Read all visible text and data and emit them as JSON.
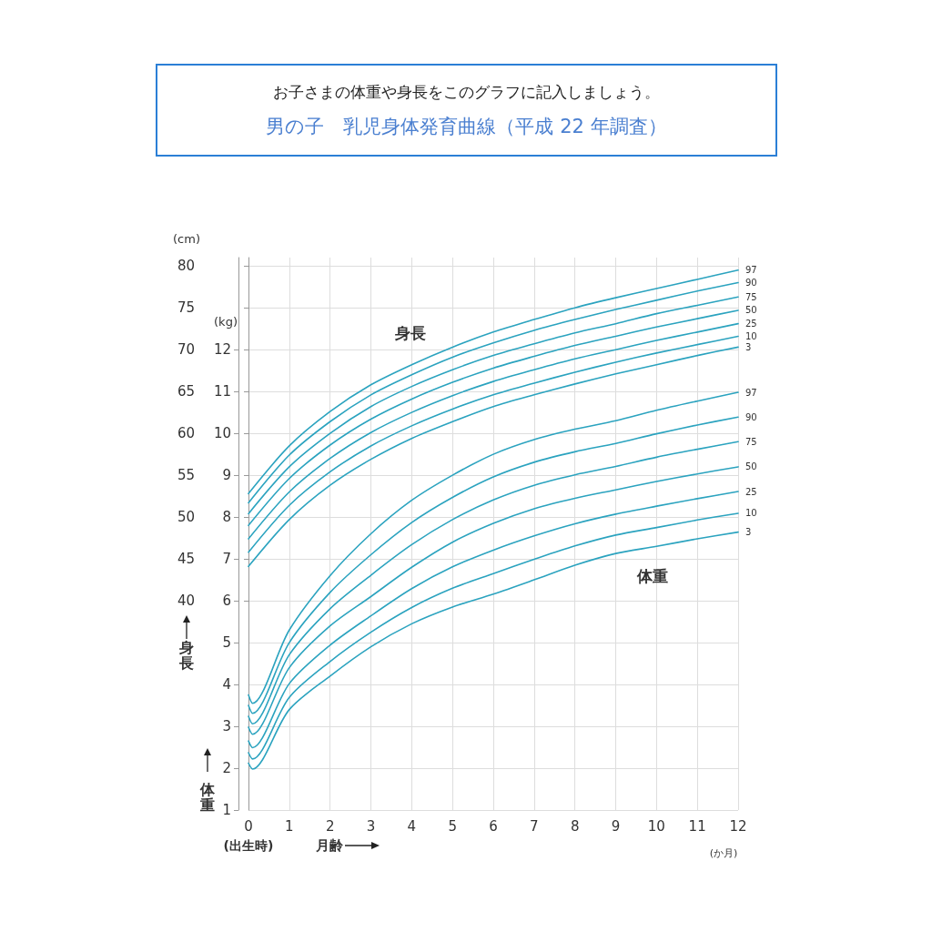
{
  "chart_data": {
    "type": "line",
    "title": "お子さまの体重や身長をこのグラフに記入しましょう。",
    "subtitle": "男の子　乳児身体発育曲線（平成 22 年調査）",
    "xlabel": "月齢",
    "ylabel": "(cm)",
    "y2label": "(kg)",
    "xlim": [
      0,
      12
    ],
    "xticks": [
      0,
      1,
      2,
      3,
      4,
      5,
      6,
      7,
      8,
      9,
      10,
      11,
      12
    ],
    "ylim": [
      15,
      81
    ],
    "yticks": [
      40,
      45,
      50,
      55,
      60,
      65,
      70,
      75,
      80
    ],
    "y2lim": [
      1,
      14.2
    ],
    "y2ticks": [
      1,
      2,
      3,
      4,
      5,
      6,
      7,
      8,
      9,
      10,
      11,
      12
    ],
    "grid": true,
    "legend": false,
    "marker": "none",
    "line_style": "solid",
    "annotations": [
      "身長",
      "体重",
      "(出生時)",
      "(か月)",
      "身長",
      "体重"
    ],
    "series": [
      {
        "name": "97",
        "color": "#2ba3bf",
        "x": [
          0,
          1,
          2,
          3,
          4,
          5,
          6,
          7,
          8,
          9,
          10,
          11,
          12
        ],
        "values": [
          52.8,
          58.5,
          62.6,
          65.8,
          68.2,
          70.3,
          72.1,
          73.6,
          75.0,
          76.2,
          77.3,
          78.4,
          79.5
        ]
      },
      {
        "name": "90",
        "color": "#2ba3bf",
        "x": [
          0,
          1,
          2,
          3,
          4,
          5,
          6,
          7,
          8,
          9,
          10,
          11,
          12
        ],
        "values": [
          51.7,
          57.4,
          61.4,
          64.6,
          67.0,
          69.1,
          70.8,
          72.3,
          73.6,
          74.8,
          75.9,
          77.0,
          78.0
        ]
      },
      {
        "name": "75",
        "color": "#2ba3bf",
        "x": [
          0,
          1,
          2,
          3,
          4,
          5,
          6,
          7,
          8,
          9,
          10,
          11,
          12
        ],
        "values": [
          50.4,
          56.0,
          60.0,
          63.2,
          65.6,
          67.6,
          69.3,
          70.7,
          72.0,
          73.1,
          74.3,
          75.3,
          76.3
        ]
      },
      {
        "name": "50",
        "color": "#2ba3bf",
        "x": [
          0,
          1,
          2,
          3,
          4,
          5,
          6,
          7,
          8,
          9,
          10,
          11,
          12
        ],
        "values": [
          49.0,
          54.6,
          58.6,
          61.7,
          64.1,
          66.1,
          67.8,
          69.2,
          70.5,
          71.6,
          72.7,
          73.7,
          74.7
        ]
      },
      {
        "name": "25",
        "color": "#2ba3bf",
        "x": [
          0,
          1,
          2,
          3,
          4,
          5,
          6,
          7,
          8,
          9,
          10,
          11,
          12
        ],
        "values": [
          47.4,
          53.0,
          57.0,
          60.1,
          62.5,
          64.5,
          66.2,
          67.6,
          68.9,
          70.0,
          71.1,
          72.1,
          73.1
        ]
      },
      {
        "name": "10",
        "color": "#2ba3bf",
        "x": [
          0,
          1,
          2,
          3,
          4,
          5,
          6,
          7,
          8,
          9,
          10,
          11,
          12
        ],
        "values": [
          45.8,
          51.4,
          55.4,
          58.5,
          60.9,
          62.9,
          64.6,
          66.0,
          67.3,
          68.5,
          69.6,
          70.6,
          71.6
        ]
      },
      {
        "name": "3",
        "color": "#2ba3bf",
        "x": [
          0,
          1,
          2,
          3,
          4,
          5,
          6,
          7,
          8,
          9,
          10,
          11,
          12
        ],
        "values": [
          44.1,
          49.7,
          53.8,
          56.9,
          59.4,
          61.4,
          63.2,
          64.6,
          65.9,
          67.1,
          68.2,
          69.3,
          70.3
        ]
      },
      {
        "name": "97",
        "color": "#2ba3bf",
        "axis": "y2",
        "x": [
          0,
          0.1,
          1,
          2,
          3,
          4,
          5,
          6,
          7,
          8,
          9,
          10,
          11,
          12
        ],
        "values": [
          3.75,
          3.55,
          5.3,
          6.6,
          7.6,
          8.4,
          9.0,
          9.5,
          9.85,
          10.1,
          10.3,
          10.55,
          10.77,
          10.98
        ]
      },
      {
        "name": "90",
        "color": "#2ba3bf",
        "axis": "y2",
        "x": [
          0,
          0.1,
          1,
          2,
          3,
          4,
          5,
          6,
          7,
          8,
          9,
          10,
          11,
          12
        ],
        "values": [
          3.5,
          3.31,
          5.0,
          6.2,
          7.1,
          7.87,
          8.47,
          8.96,
          9.31,
          9.56,
          9.76,
          9.99,
          10.2,
          10.39
        ]
      },
      {
        "name": "75",
        "color": "#2ba3bf",
        "axis": "y2",
        "x": [
          0,
          0.1,
          1,
          2,
          3,
          4,
          5,
          6,
          7,
          8,
          9,
          10,
          11,
          12
        ],
        "values": [
          3.24,
          3.06,
          4.71,
          5.81,
          6.61,
          7.34,
          7.94,
          8.41,
          8.76,
          9.01,
          9.21,
          9.43,
          9.62,
          9.8
        ]
      },
      {
        "name": "50",
        "color": "#2ba3bf",
        "axis": "y2",
        "x": [
          0,
          0.1,
          1,
          2,
          3,
          4,
          5,
          6,
          7,
          8,
          9,
          10,
          11,
          12
        ],
        "values": [
          2.98,
          2.81,
          4.4,
          5.4,
          6.1,
          6.8,
          7.4,
          7.85,
          8.2,
          8.45,
          8.65,
          8.85,
          9.03,
          9.2
        ]
      },
      {
        "name": "25",
        "color": "#2ba3bf",
        "axis": "y2",
        "x": [
          0,
          0.1,
          1,
          2,
          3,
          4,
          5,
          6,
          7,
          8,
          9,
          10,
          11,
          12
        ],
        "values": [
          2.65,
          2.49,
          4.02,
          4.94,
          5.64,
          6.29,
          6.81,
          7.21,
          7.55,
          7.84,
          8.07,
          8.26,
          8.44,
          8.61
        ]
      },
      {
        "name": "10",
        "color": "#2ba3bf",
        "axis": "y2",
        "x": [
          0,
          0.1,
          1,
          2,
          3,
          4,
          5,
          6,
          7,
          8,
          9,
          10,
          11,
          12
        ],
        "values": [
          2.37,
          2.22,
          3.69,
          4.55,
          5.25,
          5.84,
          6.3,
          6.65,
          6.99,
          7.31,
          7.57,
          7.75,
          7.93,
          8.09
        ]
      },
      {
        "name": "3",
        "color": "#2ba3bf",
        "axis": "y2",
        "x": [
          0,
          0.1,
          1,
          2,
          3,
          4,
          5,
          6,
          7,
          8,
          9,
          10,
          11,
          12
        ],
        "values": [
          2.12,
          1.98,
          3.4,
          4.2,
          4.9,
          5.45,
          5.85,
          6.16,
          6.5,
          6.85,
          7.13,
          7.3,
          7.48,
          7.64
        ]
      }
    ]
  }
}
